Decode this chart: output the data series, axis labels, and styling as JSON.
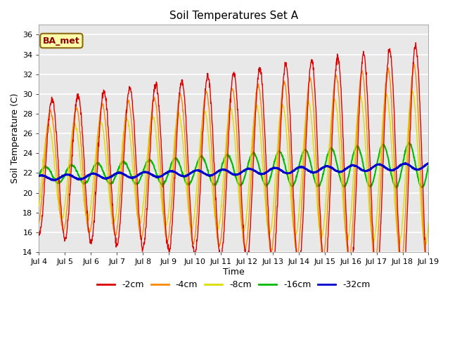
{
  "title": "Soil Temperatures Set A",
  "xlabel": "Time",
  "ylabel": "Soil Temperature (C)",
  "ylim": [
    14,
    37
  ],
  "yticks": [
    14,
    16,
    18,
    20,
    22,
    24,
    26,
    28,
    30,
    32,
    34,
    36
  ],
  "legend_labels": [
    "-2cm",
    "-4cm",
    "-8cm",
    "-16cm",
    "-32cm"
  ],
  "legend_colors": [
    "#dd0000",
    "#ff8800",
    "#dddd00",
    "#00bb00",
    "#0000cc"
  ],
  "annotation_text": "BA_met",
  "fig_width": 6.4,
  "fig_height": 4.8,
  "dpi": 100
}
